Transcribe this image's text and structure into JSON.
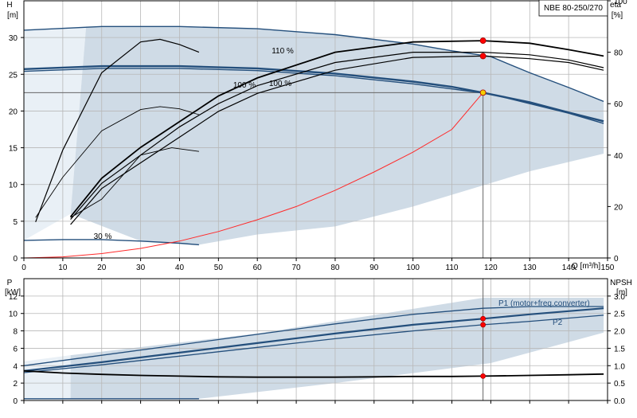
{
  "colors": {
    "envelope_fill": "#cfdbe6",
    "envelope_light": "#e9f0f6",
    "envelope_edge": "#244f7c",
    "primary_curve": "#244f7c",
    "efficiency_curve": "#000000",
    "system_curve": "#ff2a2a",
    "duty_point": "#f5d000",
    "marker": "#ff0000"
  },
  "chart_data": [
    {
      "type": "line",
      "title": "NBE 80-250/270",
      "xlabel": "Q [m³/h]",
      "ylabel": "H",
      "ylabel_unit": "[m]",
      "y2label": "eta",
      "y2label_unit": "[%]",
      "xlim": [
        0,
        150
      ],
      "ylim": [
        0,
        35
      ],
      "y2lim": [
        0,
        100
      ],
      "xticks": [
        0,
        10,
        20,
        30,
        40,
        50,
        60,
        70,
        80,
        90,
        100,
        110,
        120,
        130,
        140,
        150
      ],
      "yticks": [
        0,
        5,
        10,
        15,
        20,
        25,
        30
      ],
      "y2ticks": [
        0,
        20,
        40,
        60,
        80,
        100
      ],
      "grid": true,
      "annotations": [
        "110 %",
        "100 %",
        "100 %",
        "30 %"
      ],
      "duty_point": {
        "x": 118,
        "y": 22.5
      },
      "series": [
        {
          "name": "110 %",
          "x": [
            0,
            20,
            40,
            60,
            80,
            100,
            110,
            120,
            130,
            140,
            149
          ],
          "y": [
            31.0,
            31.5,
            31.5,
            31.2,
            30.4,
            29.1,
            28.2,
            27.4,
            25.2,
            23.2,
            21.3
          ]
        },
        {
          "name": "100 %",
          "x": [
            0,
            20,
            40,
            60,
            80,
            100,
            110,
            118,
            130,
            140,
            149
          ],
          "y": [
            25.7,
            26.1,
            26.1,
            25.8,
            25.1,
            24.0,
            23.3,
            22.5,
            21.2,
            19.8,
            18.6
          ]
        },
        {
          "x": [
            0,
            20,
            40,
            60,
            80,
            100,
            110,
            120,
            130,
            140,
            149
          ],
          "y": [
            25.4,
            25.8,
            25.8,
            25.5,
            24.8,
            23.7,
            23.0,
            22.3,
            21.0,
            19.7,
            18.3
          ]
        },
        {
          "name": "30 %",
          "x": [
            0,
            10,
            20,
            30,
            40,
            45
          ],
          "y": [
            2.4,
            2.5,
            2.5,
            2.3,
            2.0,
            1.8
          ]
        },
        {
          "x": [
            3,
            10,
            20,
            30,
            35,
            40,
            45
          ],
          "y": [
            5.5,
            11.0,
            17.3,
            20.2,
            20.6,
            20.3,
            19.5
          ]
        },
        {
          "x": [
            12,
            20,
            30,
            38,
            45
          ],
          "y": [
            5.5,
            8.0,
            14.0,
            15.0,
            14.5
          ]
        }
      ],
      "efficiency_series": [
        {
          "x": [
            12,
            20,
            30,
            40,
            50,
            60,
            80,
            100,
            118,
            130,
            140,
            149
          ],
          "y": [
            16,
            31,
            43,
            53,
            63,
            70,
            80,
            84,
            84.5,
            83.5,
            81.0,
            78.5
          ]
        },
        {
          "x": [
            12,
            20,
            30,
            40,
            50,
            60,
            80,
            100,
            118,
            130,
            140,
            149
          ],
          "y": [
            15,
            29,
            40,
            51,
            60,
            67,
            76,
            80,
            80.0,
            79.0,
            77.0,
            74.0
          ]
        },
        {
          "x": [
            12,
            20,
            30,
            40,
            50,
            60,
            80,
            100,
            118,
            130,
            140,
            149
          ],
          "y": [
            13,
            27,
            37,
            47,
            57,
            64,
            73,
            78,
            78.5,
            77.5,
            76.0,
            73.0
          ]
        },
        {
          "x": [
            3,
            10,
            20,
            30,
            35,
            40,
            45
          ],
          "y": [
            14,
            42,
            72,
            84,
            85,
            83,
            80
          ]
        }
      ],
      "system_curve": {
        "x": [
          0,
          10,
          20,
          30,
          40,
          50,
          60,
          70,
          80,
          90,
          100,
          110,
          118
        ],
        "y": [
          0,
          0.15,
          0.6,
          1.3,
          2.3,
          3.6,
          5.2,
          7.0,
          9.2,
          11.7,
          14.4,
          17.5,
          22.5
        ]
      },
      "markers": [
        {
          "x": 118,
          "y": 22.5,
          "kind": "duty"
        },
        {
          "x": 118,
          "y": 84.5,
          "axis": "y2"
        },
        {
          "x": 118,
          "y": 78.5,
          "axis": "y2"
        }
      ]
    },
    {
      "type": "line",
      "title": "",
      "xlabel": "",
      "ylabel": "P",
      "ylabel_unit": "[kW]",
      "y2label": "NPSH",
      "y2label_unit": "[m]",
      "xlim": [
        0,
        150
      ],
      "ylim": [
        0,
        14
      ],
      "y2lim": [
        0,
        3.5
      ],
      "yticks": [
        0,
        2,
        4,
        6,
        8,
        10,
        12
      ],
      "y2ticks": [
        "0.0",
        "0.5",
        "1.0",
        "1.5",
        "2.0",
        "2.5",
        "3.0"
      ],
      "grid": true,
      "legend": [
        "P1 (motor+freq.converter)",
        "P2"
      ],
      "series": [
        {
          "name": "P1 (motor+freq.converter)",
          "x": [
            0,
            20,
            40,
            60,
            80,
            100,
            118,
            130,
            149
          ],
          "y": [
            3.4,
            4.4,
            5.5,
            6.6,
            7.7,
            8.7,
            9.4,
            9.9,
            10.6
          ]
        },
        {
          "name": "P2",
          "x": [
            0,
            20,
            40,
            60,
            80,
            100,
            118,
            130,
            149
          ],
          "y": [
            3.2,
            4.1,
            5.1,
            6.1,
            7.1,
            8.0,
            8.7,
            9.1,
            9.8
          ]
        },
        {
          "x": [
            0,
            20,
            40,
            60,
            80,
            100,
            118,
            130,
            149
          ],
          "y": [
            4.0,
            5.2,
            6.4,
            7.6,
            8.8,
            9.9,
            10.6,
            10.8,
            10.8
          ]
        },
        {
          "x": [
            0,
            45
          ],
          "y": [
            0.2,
            0.2
          ]
        }
      ],
      "npsh_series": {
        "x": [
          0,
          10,
          20,
          30,
          40,
          50,
          60,
          70,
          80,
          90,
          100,
          110,
          118,
          130,
          140,
          149
        ],
        "y": [
          0.85,
          0.79,
          0.75,
          0.72,
          0.7,
          0.68,
          0.67,
          0.67,
          0.67,
          0.68,
          0.69,
          0.69,
          0.7,
          0.72,
          0.74,
          0.76
        ]
      },
      "markers": [
        {
          "x": 118,
          "y": 9.4
        },
        {
          "x": 118,
          "y": 8.7
        },
        {
          "x": 118,
          "y": 0.7,
          "axis": "y2"
        }
      ]
    }
  ]
}
